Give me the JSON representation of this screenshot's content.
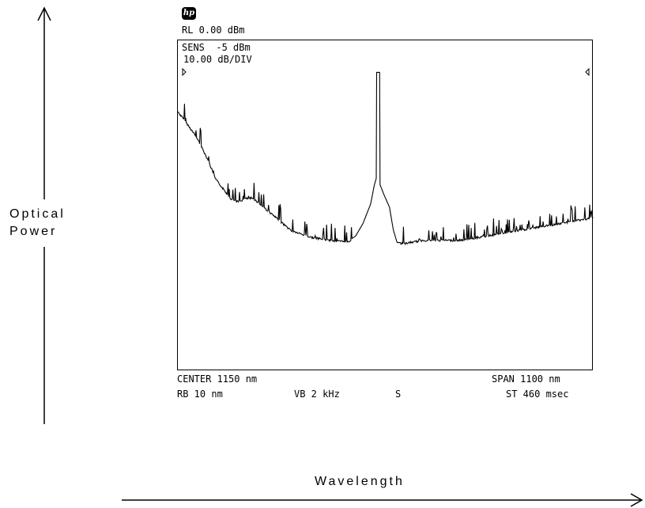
{
  "logo_text": "hp",
  "header": {
    "ref_level": "RL 0.00 dBm",
    "sensitivity": "SENS  -5 dBm",
    "scale": "10.00 dB/DIV"
  },
  "footer": {
    "center": "CENTER 1150 nm",
    "span": "SPAN 1100 nm",
    "res_bw": "RB 10 nm",
    "video_bw": "VB 2 kHz",
    "mode": "S",
    "sweep_time": "ST 460 msec"
  },
  "axis_words": {
    "y_line1": "Optical",
    "y_line2": "Power",
    "x": "Wavelength"
  },
  "chart_data": {
    "type": "line",
    "xlabel": "Wavelength",
    "ylabel": "Optical Power",
    "xlim": [
      600,
      1700
    ],
    "ylim": [
      -100,
      0
    ],
    "grid": false,
    "series": [
      {
        "x": [
          600,
          620,
          650,
          680,
          700,
          720,
          740,
          760,
          780,
          800,
          830,
          860,
          900,
          950,
          1000,
          1050,
          1070,
          1090,
          1110,
          1120,
          1125,
          1126,
          1134,
          1135,
          1145,
          1160,
          1170,
          1180,
          1200,
          1250,
          1300,
          1350,
          1400,
          1450,
          1500,
          1550,
          1600,
          1650,
          1700
        ],
        "y": [
          -19,
          -22,
          -27,
          -34,
          -40,
          -43,
          -46,
          -47,
          -46,
          -46,
          -49,
          -52,
          -56,
          -58,
          -59,
          -59.5,
          -58,
          -54,
          -48,
          -42,
          -40,
          -7,
          -7,
          -42,
          -45,
          -49,
          -56,
          -60,
          -60,
          -59,
          -59,
          -59,
          -58,
          -57,
          -56,
          -55,
          -54,
          -53,
          -52
        ]
      }
    ],
    "markers": [
      "left edge marker at reference",
      "right edge marker at reference"
    ]
  }
}
